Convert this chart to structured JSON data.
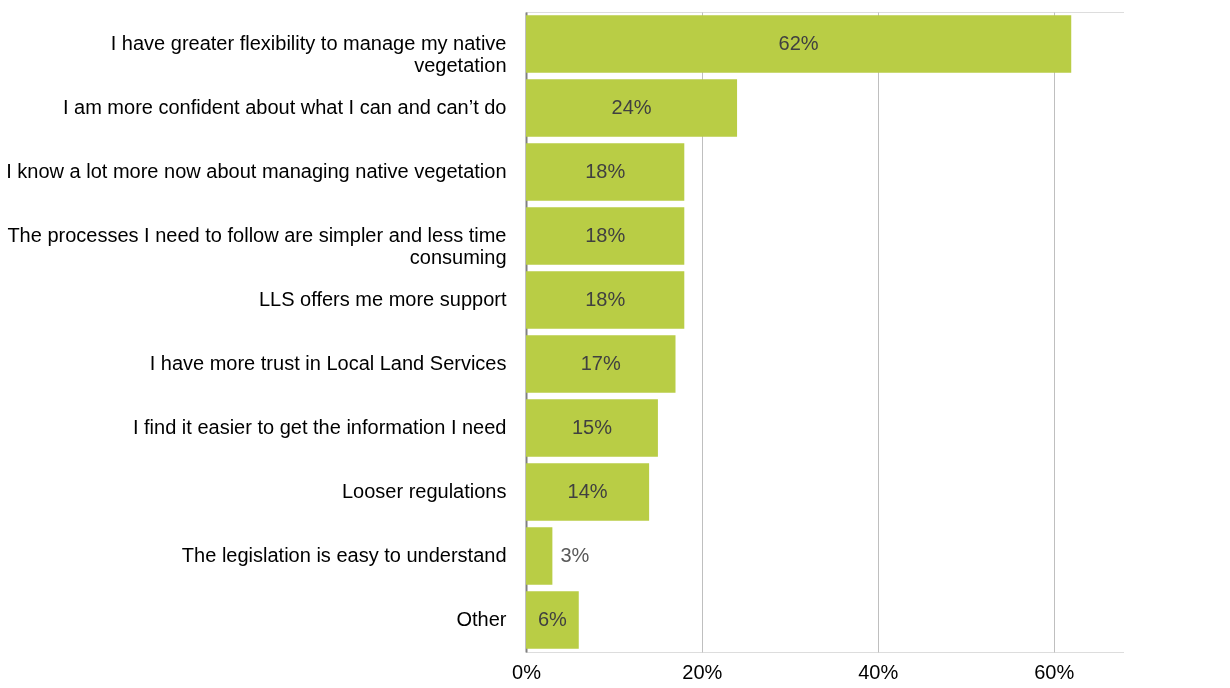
{
  "chart_data": {
    "type": "bar",
    "orientation": "horizontal",
    "categories": [
      "I have greater flexibility to manage my native vegetation",
      "I am more confident about what I can and can’t do",
      "I know a lot more now about managing native vegetation",
      "The processes I need to follow are simpler and less time consuming",
      "LLS offers me more support",
      "I have more trust in Local Land Services",
      "I find it easier to get the information I need",
      "Looser regulations",
      "The legislation is easy to understand",
      "Other"
    ],
    "values": [
      62,
      24,
      18,
      18,
      18,
      17,
      15,
      14,
      3,
      6
    ],
    "value_labels": [
      "62%",
      "24%",
      "18%",
      "18%",
      "18%",
      "17%",
      "15%",
      "14%",
      "3%",
      "6%"
    ],
    "color": "#b9cd45",
    "xlim": [
      0,
      68
    ],
    "xticks": [
      {
        "value": 0,
        "label": "0%"
      },
      {
        "value": 20,
        "label": "20%"
      },
      {
        "value": 40,
        "label": "40%"
      },
      {
        "value": 60,
        "label": "60%"
      }
    ],
    "grid": "x"
  }
}
